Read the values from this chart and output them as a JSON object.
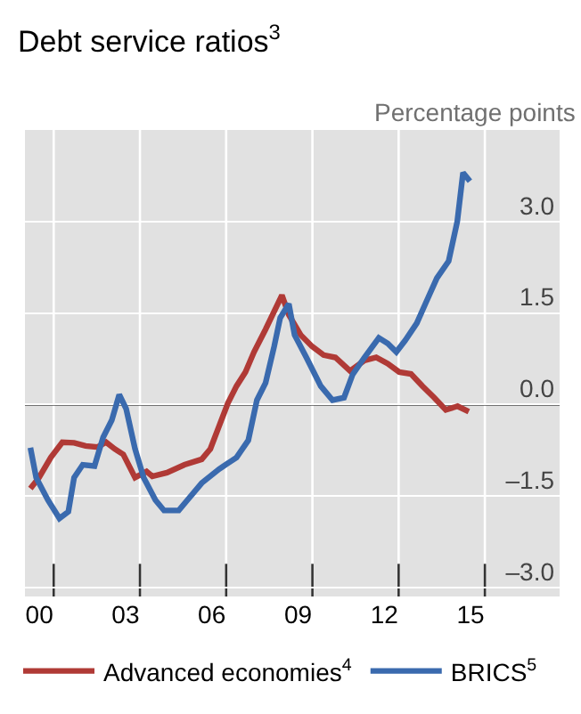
{
  "chart_data": {
    "type": "line",
    "title": "Debt service ratios$^{3}$",
    "ylabel": "Percentage points",
    "xlim": [
      1999.5,
      2018.1
    ],
    "ylim": [
      -3.15,
      4.5
    ],
    "xticks": [
      {
        "value": 2000,
        "label": "00"
      },
      {
        "value": 2003,
        "label": "03"
      },
      {
        "value": 2006,
        "label": "06"
      },
      {
        "value": 2009,
        "label": "09"
      },
      {
        "value": 2012,
        "label": "12"
      },
      {
        "value": 2015,
        "label": "15"
      },
      {
        "value": 2000.5,
        "label": null
      },
      {
        "value": 2003.5,
        "label": null
      },
      {
        "value": 2006.5,
        "label": null
      },
      {
        "value": 2009.5,
        "label": null
      },
      {
        "value": 2012.5,
        "label": null
      },
      {
        "value": 2015.5,
        "label": null
      }
    ],
    "yticks": [
      {
        "value": -3,
        "label": "–3.0"
      },
      {
        "value": -1.5,
        "label": "–1.5"
      },
      {
        "value": 0,
        "label": "0.0"
      },
      {
        "value": 1.5,
        "label": "1.5"
      },
      {
        "value": 3,
        "label": "3.0"
      }
    ],
    "grid": true,
    "legend": "bottom",
    "marker": "none",
    "line_style": "solid",
    "ref_lines": [
      {
        "axis": "y",
        "value": 0,
        "label": null,
        "color": "#000000"
      }
    ],
    "series": [
      {
        "name": "Advanced economies$^{4}$",
        "color": "#b03a36",
        "x": [
          1999.69,
          1999.99,
          2000.4,
          2000.8,
          2001.21,
          2001.61,
          2002.02,
          2002.32,
          2002.62,
          2002.92,
          2003.33,
          2003.73,
          2003.93,
          2004.44,
          2005.05,
          2005.65,
          2005.95,
          2006.26,
          2006.56,
          2006.86,
          2007.17,
          2007.47,
          2007.87,
          2008.44,
          2008.68,
          2009.09,
          2009.49,
          2009.89,
          2010.3,
          2010.81,
          2011.31,
          2011.72,
          2012.12,
          2012.52,
          2012.93,
          2013.33,
          2013.74,
          2014.14,
          2014.55,
          2014.94
        ],
        "values": [
          -1.38,
          -1.2,
          -0.87,
          -0.62,
          -0.63,
          -0.68,
          -0.7,
          -0.62,
          -0.73,
          -0.82,
          -1.2,
          -1.1,
          -1.18,
          -1.12,
          -0.99,
          -0.9,
          -0.73,
          -0.35,
          0.02,
          0.3,
          0.53,
          0.86,
          1.23,
          1.79,
          1.47,
          1.14,
          0.95,
          0.81,
          0.77,
          0.55,
          0.72,
          0.77,
          0.67,
          0.53,
          0.5,
          0.3,
          0.11,
          -0.09,
          -0.03,
          -0.12
        ]
      },
      {
        "name": "BRICS$^{5}$",
        "color": "#3a6aae",
        "x": [
          1999.69,
          1999.89,
          2000.3,
          2000.7,
          2001.01,
          2001.21,
          2001.51,
          2001.92,
          2002.22,
          2002.52,
          2002.78,
          2003.02,
          2003.33,
          2003.63,
          2004.04,
          2004.34,
          2004.85,
          2005.15,
          2005.65,
          2006.26,
          2006.86,
          2007.27,
          2007.57,
          2007.87,
          2008.17,
          2008.38,
          2008.68,
          2008.88,
          2009.29,
          2009.79,
          2010.2,
          2010.6,
          2010.9,
          2011.31,
          2011.81,
          2012.12,
          2012.42,
          2012.73,
          2013.13,
          2013.43,
          2013.83,
          2014.24,
          2014.54,
          2014.74,
          2014.98
        ],
        "values": [
          -0.71,
          -1.2,
          -1.57,
          -1.87,
          -1.76,
          -1.2,
          -0.99,
          -1.01,
          -0.54,
          -0.26,
          0.16,
          -0.07,
          -0.73,
          -1.2,
          -1.57,
          -1.74,
          -1.74,
          -1.57,
          -1.29,
          -1.06,
          -0.87,
          -0.59,
          0.07,
          0.35,
          0.95,
          1.42,
          1.65,
          1.14,
          0.77,
          0.3,
          0.07,
          0.11,
          0.49,
          0.77,
          1.09,
          1.0,
          0.86,
          1.05,
          1.33,
          1.65,
          2.07,
          2.35,
          3.0,
          3.8,
          3.66
        ]
      }
    ]
  }
}
